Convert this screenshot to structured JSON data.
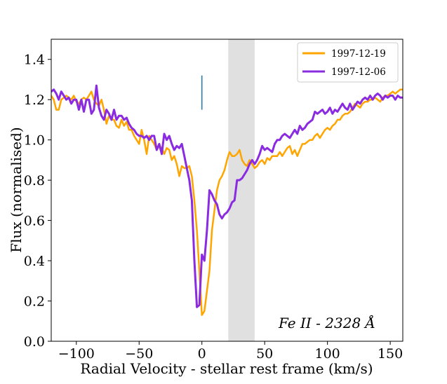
{
  "chart_data": {
    "type": "line",
    "xlabel": "Radial Velocity - stellar rest frame (km/s)",
    "ylabel": "Flux (normalised)",
    "xlim": [
      -120,
      160
    ],
    "ylim": [
      0.0,
      1.5
    ],
    "xticks": [
      -100,
      -50,
      0,
      50,
      100,
      150
    ],
    "xtick_labels": [
      "−100",
      "−50",
      "0",
      "50",
      "100",
      "150"
    ],
    "yticks": [
      0.0,
      0.2,
      0.4,
      0.6,
      0.8,
      1.0,
      1.2,
      1.4
    ],
    "ytick_labels": [
      "0.0",
      "0.2",
      "0.4",
      "0.6",
      "0.8",
      "1.0",
      "1.2",
      "1.4"
    ],
    "shaded_band": {
      "x0": 21,
      "x1": 42,
      "color": "#e0e0e0"
    },
    "marker_line": {
      "x": 0,
      "y0": 1.15,
      "y1": 1.32,
      "color": "#1f77b4"
    },
    "annotation": "Fe II - 2328 Å",
    "legend_position": "top-right",
    "series": [
      {
        "name": "1997-12-19",
        "color": "#ffa500",
        "x": [
          -120,
          -118,
          -116,
          -114,
          -112,
          -110,
          -108,
          -106,
          -104,
          -102,
          -100,
          -98,
          -96,
          -94,
          -92,
          -90,
          -88,
          -86,
          -84,
          -82,
          -80,
          -78,
          -76,
          -74,
          -72,
          -70,
          -68,
          -66,
          -64,
          -62,
          -60,
          -58,
          -56,
          -54,
          -52,
          -50,
          -48,
          -46,
          -44,
          -42,
          -40,
          -38,
          -36,
          -34,
          -32,
          -30,
          -28,
          -26,
          -24,
          -22,
          -20,
          -18,
          -16,
          -14,
          -12,
          -10,
          -8,
          -6,
          -4,
          -2,
          0,
          2,
          4,
          6,
          8,
          10,
          12,
          14,
          16,
          18,
          20,
          22,
          24,
          26,
          28,
          30,
          32,
          34,
          36,
          38,
          40,
          42,
          44,
          46,
          48,
          50,
          52,
          54,
          56,
          58,
          60,
          62,
          64,
          66,
          68,
          70,
          72,
          74,
          76,
          78,
          80,
          82,
          84,
          86,
          88,
          90,
          92,
          94,
          96,
          98,
          100,
          102,
          104,
          106,
          108,
          110,
          112,
          114,
          116,
          118,
          120,
          122,
          124,
          126,
          128,
          130,
          132,
          134,
          136,
          138,
          140,
          142,
          144,
          146,
          148,
          150,
          152,
          154,
          156,
          158,
          160
        ],
        "y": [
          1.22,
          1.2,
          1.15,
          1.15,
          1.2,
          1.21,
          1.22,
          1.21,
          1.2,
          1.22,
          1.19,
          1.18,
          1.2,
          1.21,
          1.2,
          1.22,
          1.24,
          1.2,
          1.18,
          1.17,
          1.2,
          1.15,
          1.08,
          1.12,
          1.1,
          1.1,
          1.07,
          1.06,
          1.1,
          1.07,
          1.09,
          1.05,
          1.05,
          1.02,
          1.0,
          0.98,
          1.05,
          1.0,
          0.93,
          1.02,
          1.0,
          0.98,
          0.95,
          0.97,
          0.96,
          0.93,
          0.96,
          0.95,
          0.9,
          0.92,
          0.88,
          0.82,
          0.87,
          0.86,
          0.86,
          0.87,
          0.82,
          0.7,
          0.55,
          0.35,
          0.13,
          0.15,
          0.25,
          0.35,
          0.55,
          0.65,
          0.75,
          0.8,
          0.82,
          0.85,
          0.9,
          0.94,
          0.92,
          0.92,
          0.93,
          0.95,
          0.9,
          0.88,
          0.87,
          0.9,
          0.88,
          0.86,
          0.87,
          0.89,
          0.9,
          0.88,
          0.91,
          0.9,
          0.92,
          0.92,
          0.92,
          0.94,
          0.92,
          0.94,
          0.96,
          0.97,
          0.93,
          0.95,
          0.92,
          0.95,
          0.98,
          0.98,
          0.99,
          1.0,
          1.0,
          1.02,
          1.03,
          1.01,
          1.03,
          1.05,
          1.06,
          1.05,
          1.07,
          1.08,
          1.1,
          1.1,
          1.12,
          1.13,
          1.13,
          1.14,
          1.16,
          1.18,
          1.17,
          1.16,
          1.18,
          1.19,
          1.19,
          1.2,
          1.2,
          1.21,
          1.2,
          1.19,
          1.21,
          1.22,
          1.22,
          1.23,
          1.24,
          1.23,
          1.24,
          1.25,
          1.25
        ]
      },
      {
        "name": "1997-12-06",
        "color": "#8a2be2",
        "x": [
          -120,
          -118,
          -116,
          -114,
          -112,
          -110,
          -108,
          -106,
          -104,
          -102,
          -100,
          -98,
          -96,
          -94,
          -92,
          -90,
          -88,
          -86,
          -84,
          -82,
          -80,
          -78,
          -76,
          -74,
          -72,
          -70,
          -68,
          -66,
          -64,
          -62,
          -60,
          -58,
          -56,
          -54,
          -52,
          -50,
          -48,
          -46,
          -44,
          -42,
          -40,
          -38,
          -36,
          -34,
          -32,
          -30,
          -28,
          -26,
          -24,
          -22,
          -20,
          -18,
          -16,
          -14,
          -12,
          -10,
          -8,
          -6,
          -4,
          -2,
          0,
          2,
          4,
          6,
          8,
          10,
          12,
          14,
          16,
          18,
          20,
          22,
          24,
          26,
          28,
          30,
          32,
          34,
          36,
          38,
          40,
          42,
          44,
          46,
          48,
          50,
          52,
          54,
          56,
          58,
          60,
          62,
          64,
          66,
          68,
          70,
          72,
          74,
          76,
          78,
          80,
          82,
          84,
          86,
          88,
          90,
          92,
          94,
          96,
          98,
          100,
          102,
          104,
          106,
          108,
          110,
          112,
          114,
          116,
          118,
          120,
          122,
          124,
          126,
          128,
          130,
          132,
          134,
          136,
          138,
          140,
          142,
          144,
          146,
          148,
          150,
          152,
          154,
          156,
          158,
          160
        ],
        "y": [
          1.24,
          1.25,
          1.23,
          1.2,
          1.24,
          1.22,
          1.2,
          1.21,
          1.18,
          1.2,
          1.2,
          1.15,
          1.2,
          1.14,
          1.2,
          1.2,
          1.13,
          1.15,
          1.27,
          1.16,
          1.12,
          1.1,
          1.15,
          1.13,
          1.1,
          1.15,
          1.1,
          1.12,
          1.12,
          1.1,
          1.11,
          1.08,
          1.06,
          1.05,
          1.03,
          1.02,
          1.02,
          1.01,
          1.02,
          1.0,
          1.02,
          1.02,
          0.95,
          0.98,
          0.93,
          1.03,
          1.0,
          1.02,
          0.98,
          0.95,
          0.97,
          0.96,
          0.98,
          0.92,
          0.86,
          0.8,
          0.7,
          0.4,
          0.17,
          0.18,
          0.43,
          0.4,
          0.55,
          0.75,
          0.73,
          0.7,
          0.68,
          0.63,
          0.61,
          0.63,
          0.64,
          0.66,
          0.69,
          0.7,
          0.8,
          0.8,
          0.81,
          0.83,
          0.85,
          0.88,
          0.9,
          0.88,
          0.9,
          0.93,
          0.97,
          0.95,
          0.96,
          0.95,
          0.94,
          0.98,
          1.0,
          1.0,
          1.02,
          1.03,
          1.02,
          1.01,
          1.03,
          1.05,
          1.03,
          1.07,
          1.05,
          1.06,
          1.08,
          1.09,
          1.1,
          1.14,
          1.13,
          1.14,
          1.15,
          1.13,
          1.14,
          1.16,
          1.13,
          1.15,
          1.14,
          1.16,
          1.18,
          1.16,
          1.15,
          1.18,
          1.15,
          1.17,
          1.19,
          1.18,
          1.2,
          1.21,
          1.2,
          1.22,
          1.2,
          1.22,
          1.23,
          1.22,
          1.2,
          1.22,
          1.21,
          1.22,
          1.22,
          1.2,
          1.22,
          1.21,
          1.21
        ]
      }
    ]
  }
}
